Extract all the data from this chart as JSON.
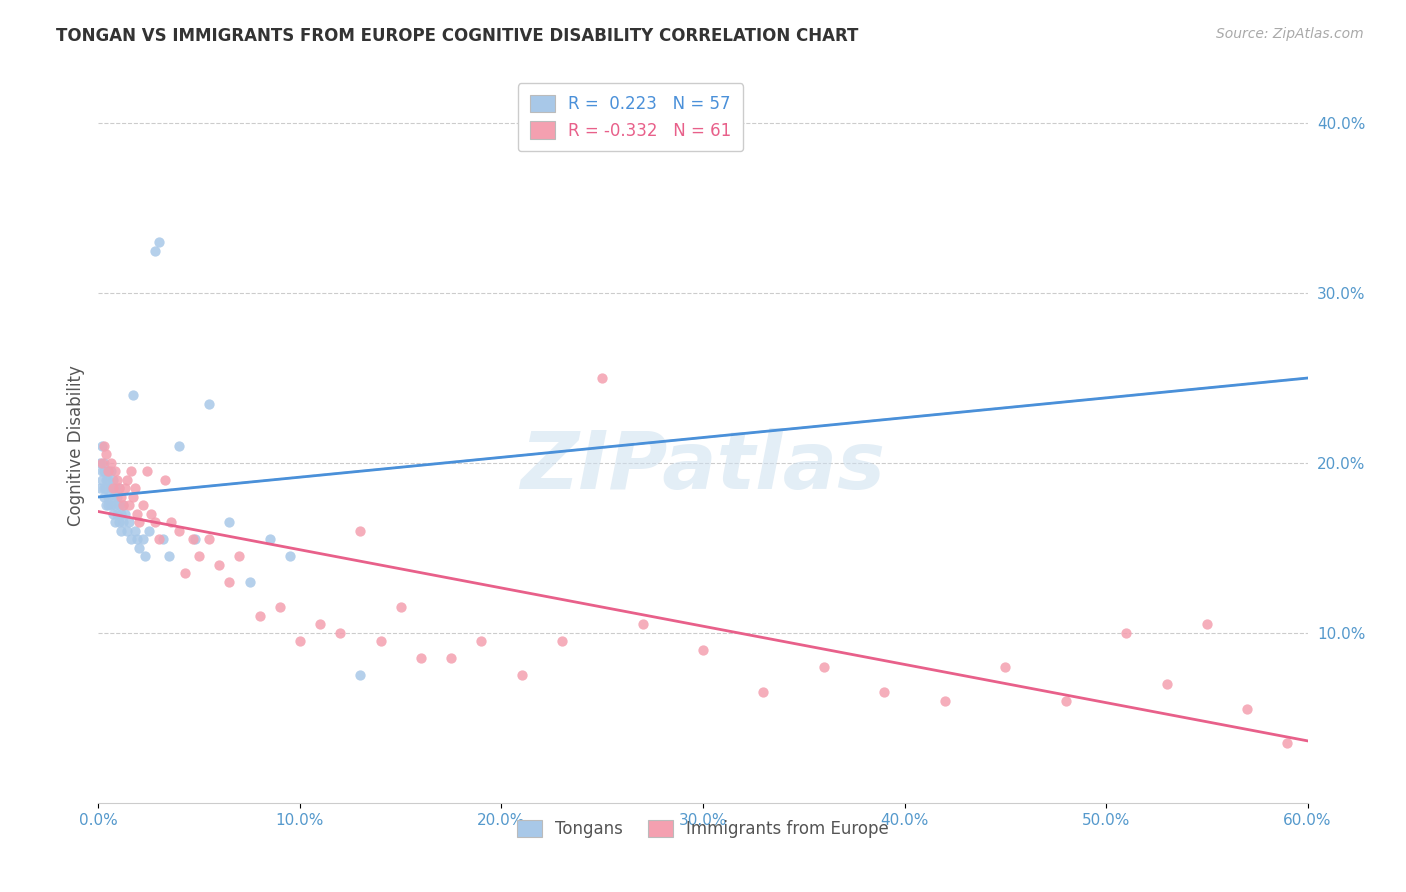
{
  "title": "TONGAN VS IMMIGRANTS FROM EUROPE COGNITIVE DISABILITY CORRELATION CHART",
  "source": "Source: ZipAtlas.com",
  "ylabel": "Cognitive Disability",
  "right_yticks": [
    "40.0%",
    "30.0%",
    "20.0%",
    "10.0%"
  ],
  "right_ytick_vals": [
    0.4,
    0.3,
    0.2,
    0.1
  ],
  "legend_blue_label": "R =  0.223   N = 57",
  "legend_pink_label": "R = -0.332   N = 61",
  "blue_color": "#a8c8e8",
  "pink_color": "#f4a0b0",
  "blue_line_color": "#4a90d9",
  "pink_line_color": "#e8608a",
  "dashed_line_color": "#b8cfe0",
  "background_color": "#ffffff",
  "watermark": "ZIPatlas",
  "tongans_label": "Tongans",
  "europe_label": "Immigrants from Europe",
  "blue_R": 0.223,
  "blue_N": 57,
  "pink_R": -0.332,
  "pink_N": 61,
  "blue_points_x": [
    0.001,
    0.001,
    0.002,
    0.002,
    0.002,
    0.003,
    0.003,
    0.003,
    0.003,
    0.004,
    0.004,
    0.004,
    0.005,
    0.005,
    0.005,
    0.005,
    0.006,
    0.006,
    0.006,
    0.007,
    0.007,
    0.007,
    0.008,
    0.008,
    0.008,
    0.009,
    0.009,
    0.01,
    0.01,
    0.01,
    0.011,
    0.011,
    0.012,
    0.012,
    0.013,
    0.014,
    0.015,
    0.016,
    0.017,
    0.018,
    0.019,
    0.02,
    0.022,
    0.023,
    0.025,
    0.028,
    0.03,
    0.032,
    0.035,
    0.04,
    0.048,
    0.055,
    0.065,
    0.075,
    0.085,
    0.095,
    0.13
  ],
  "blue_points_y": [
    0.185,
    0.2,
    0.195,
    0.21,
    0.19,
    0.2,
    0.195,
    0.185,
    0.18,
    0.19,
    0.185,
    0.175,
    0.195,
    0.19,
    0.18,
    0.175,
    0.185,
    0.195,
    0.175,
    0.19,
    0.18,
    0.17,
    0.185,
    0.175,
    0.165,
    0.18,
    0.17,
    0.185,
    0.175,
    0.165,
    0.17,
    0.16,
    0.175,
    0.165,
    0.17,
    0.16,
    0.165,
    0.155,
    0.24,
    0.16,
    0.155,
    0.15,
    0.155,
    0.145,
    0.16,
    0.325,
    0.33,
    0.155,
    0.145,
    0.21,
    0.155,
    0.235,
    0.165,
    0.13,
    0.155,
    0.145,
    0.075
  ],
  "pink_points_x": [
    0.002,
    0.003,
    0.004,
    0.005,
    0.006,
    0.007,
    0.008,
    0.009,
    0.01,
    0.011,
    0.012,
    0.013,
    0.014,
    0.015,
    0.016,
    0.017,
    0.018,
    0.019,
    0.02,
    0.022,
    0.024,
    0.026,
    0.028,
    0.03,
    0.033,
    0.036,
    0.04,
    0.043,
    0.047,
    0.05,
    0.055,
    0.06,
    0.065,
    0.07,
    0.08,
    0.09,
    0.1,
    0.11,
    0.12,
    0.13,
    0.14,
    0.15,
    0.16,
    0.175,
    0.19,
    0.21,
    0.23,
    0.25,
    0.27,
    0.3,
    0.33,
    0.36,
    0.39,
    0.42,
    0.45,
    0.48,
    0.51,
    0.53,
    0.55,
    0.57,
    0.59
  ],
  "pink_points_y": [
    0.2,
    0.21,
    0.205,
    0.195,
    0.2,
    0.185,
    0.195,
    0.19,
    0.185,
    0.18,
    0.175,
    0.185,
    0.19,
    0.175,
    0.195,
    0.18,
    0.185,
    0.17,
    0.165,
    0.175,
    0.195,
    0.17,
    0.165,
    0.155,
    0.19,
    0.165,
    0.16,
    0.135,
    0.155,
    0.145,
    0.155,
    0.14,
    0.13,
    0.145,
    0.11,
    0.115,
    0.095,
    0.105,
    0.1,
    0.16,
    0.095,
    0.115,
    0.085,
    0.085,
    0.095,
    0.075,
    0.095,
    0.25,
    0.105,
    0.09,
    0.065,
    0.08,
    0.065,
    0.06,
    0.08,
    0.06,
    0.1,
    0.07,
    0.105,
    0.055,
    0.035
  ],
  "xmin": 0.0,
  "xmax": 0.6,
  "ymin": 0.0,
  "ymax": 0.42,
  "blue_line_xmin": 0.0,
  "blue_line_xmax": 0.6,
  "pink_line_xmin": 0.0,
  "pink_line_xmax": 0.6
}
